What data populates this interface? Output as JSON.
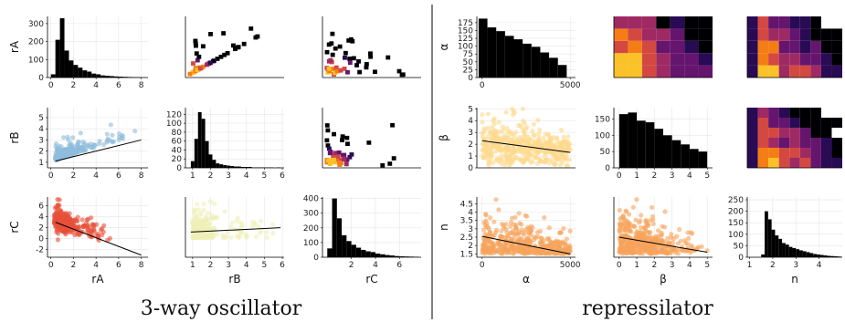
{
  "figure": {
    "left_title": "3-way oscillator",
    "right_title": "repressilator"
  },
  "colors": {
    "hist": "#000000",
    "blue": "#8fbcdc",
    "red": "#e8503a",
    "yellow": "#eef0b8",
    "cream": "#fdd98c",
    "orange": "#f7a35c",
    "fit": "#000000",
    "inferno": [
      "#000004",
      "#280b54",
      "#65156e",
      "#9f2a63",
      "#d44842",
      "#f57d15",
      "#fac228",
      "#fcffa4"
    ]
  },
  "chart_data": [
    {
      "id": "osc-hist-rA",
      "type": "bar",
      "panel": "3-way oscillator row1 col1",
      "ylabel": "rA",
      "xticks": [
        0,
        2,
        4,
        6,
        8
      ],
      "yticks": [
        0,
        100,
        200,
        300
      ],
      "xlim": [
        -0.3,
        8.6
      ],
      "ylim": [
        0,
        340
      ],
      "bins": [
        0,
        0.4,
        0.8,
        1.2,
        1.6,
        2.0,
        2.4,
        2.8,
        3.2,
        3.6,
        4.0,
        4.4,
        4.8,
        5.2,
        5.6,
        6.0,
        6.4,
        6.8,
        7.2,
        7.6,
        8.0,
        8.4
      ],
      "counts": [
        18,
        210,
        330,
        150,
        95,
        70,
        55,
        40,
        33,
        22,
        18,
        12,
        10,
        8,
        6,
        5,
        4,
        3,
        2,
        2,
        1
      ]
    },
    {
      "id": "osc-heat-rB-rA",
      "type": "heatmap",
      "panel": "3-way oscillator row1 col2",
      "x_var": "rB",
      "y_var": "rA"
    },
    {
      "id": "osc-heat-rC-rA",
      "type": "heatmap",
      "panel": "3-way oscillator row1 col3",
      "x_var": "rC",
      "y_var": "rA"
    },
    {
      "id": "osc-scatter-rA-rB",
      "type": "scatter",
      "panel": "3-way oscillator row2 col1",
      "ylabel": "rB",
      "xticks": [
        0,
        2,
        4,
        6,
        8
      ],
      "yticks": [
        1,
        2,
        3,
        4,
        5
      ],
      "xlim": [
        -0.3,
        8.6
      ],
      "ylim": [
        0.5,
        5.9
      ],
      "fit": {
        "x": [
          0.4,
          8
        ],
        "y": [
          1.1,
          3.0
        ]
      }
    },
    {
      "id": "osc-hist-rB",
      "type": "bar",
      "panel": "3-way oscillator row2 col2",
      "xticks": [
        1,
        2,
        3,
        4,
        5,
        6
      ],
      "yticks": [
        0,
        20,
        40,
        60,
        80,
        100,
        120
      ],
      "xlim": [
        0.6,
        6.1
      ],
      "ylim": [
        0,
        135
      ],
      "bins": [
        0.9,
        1.1,
        1.3,
        1.5,
        1.7,
        1.9,
        2.1,
        2.3,
        2.5,
        2.7,
        2.9,
        3.1,
        3.3,
        3.5,
        3.7,
        3.9,
        4.1,
        4.3,
        4.5,
        4.7,
        4.9,
        5.1,
        5.3,
        5.5,
        5.7,
        5.9
      ],
      "counts": [
        15,
        65,
        125,
        110,
        60,
        30,
        18,
        10,
        8,
        6,
        5,
        4,
        3,
        3,
        2,
        2,
        2,
        1,
        1,
        1,
        1,
        1,
        1,
        0,
        1
      ]
    },
    {
      "id": "osc-heat-rC-rB",
      "type": "heatmap",
      "panel": "3-way oscillator row2 col3",
      "x_var": "rC",
      "y_var": "rB"
    },
    {
      "id": "osc-scatter-rA-rC",
      "type": "scatter",
      "panel": "3-way oscillator row3 col1",
      "xlabel": "rA",
      "ylabel": "rC",
      "xticks": [
        0,
        2,
        4,
        6,
        8
      ],
      "yticks": [
        -2,
        0,
        2,
        4,
        6
      ],
      "xlim": [
        -0.3,
        8.6
      ],
      "ylim": [
        -3.4,
        7.6
      ],
      "fit": {
        "x": [
          0.4,
          8
        ],
        "y": [
          3.0,
          -3.0
        ]
      }
    },
    {
      "id": "osc-scatter-rB-rC",
      "type": "scatter",
      "panel": "3-way oscillator row3 col2",
      "xlabel": "rB",
      "xticks": [
        1,
        2,
        3,
        4,
        5,
        6
      ],
      "xlim": [
        0.6,
        6.1
      ],
      "ylim": [
        -3.4,
        7.6
      ],
      "fit": {
        "x": [
          0.9,
          5.9
        ],
        "y": [
          1.2,
          2.0
        ]
      }
    },
    {
      "id": "osc-hist-rC",
      "type": "bar",
      "panel": "3-way oscillator row3 col3",
      "xlabel": "rC",
      "xticks": [
        2,
        4,
        6
      ],
      "yticks": [
        0,
        100,
        200,
        300,
        400
      ],
      "xlim": [
        -0.4,
        7.8
      ],
      "ylim": [
        0,
        410
      ],
      "bins": [
        0,
        0.4,
        0.8,
        1.2,
        1.6,
        2.0,
        2.4,
        2.8,
        3.2,
        3.6,
        4.0,
        4.4,
        4.8,
        5.2,
        5.6,
        6.0,
        6.4,
        6.8,
        7.2,
        7.6
      ],
      "counts": [
        60,
        400,
        265,
        150,
        110,
        85,
        65,
        50,
        40,
        35,
        25,
        20,
        15,
        12,
        8,
        6,
        5,
        4,
        3
      ]
    },
    {
      "id": "rep-hist-alpha",
      "type": "bar",
      "panel": "repressilator row1 col1",
      "ylabel": "α",
      "xticks": [
        0,
        5000
      ],
      "yticks": [
        0,
        25,
        50,
        75,
        100,
        125,
        150,
        175
      ],
      "xlim": [
        -300,
        5300
      ],
      "ylim": [
        0,
        195
      ],
      "bins": [
        -200,
        300,
        800,
        1300,
        1800,
        2300,
        2800,
        3300,
        3800,
        4300,
        4800
      ],
      "counts": [
        188,
        160,
        148,
        133,
        122,
        108,
        98,
        80,
        63,
        40
      ]
    },
    {
      "id": "rep-heat-beta-alpha",
      "type": "heatmap",
      "panel": "repressilator row1 col2",
      "x_var": "β",
      "y_var": "α"
    },
    {
      "id": "rep-heat-n-alpha",
      "type": "heatmap",
      "panel": "repressilator row1 col3",
      "x_var": "n",
      "y_var": "α"
    },
    {
      "id": "rep-scatter-alpha-beta",
      "type": "scatter",
      "panel": "repressilator row2 col1",
      "ylabel": "β",
      "yticks": [
        0,
        1,
        2,
        3,
        4,
        5
      ],
      "xlim": [
        -300,
        5300
      ],
      "ylim": [
        0,
        5.1
      ],
      "fit": {
        "x": [
          0,
          5000
        ],
        "y": [
          2.3,
          1.3
        ]
      }
    },
    {
      "id": "rep-hist-beta",
      "type": "bar",
      "panel": "repressilator row2 col2",
      "xticks": [
        0,
        1,
        2,
        3,
        4,
        5
      ],
      "yticks": [
        0,
        50,
        100,
        150
      ],
      "xlim": [
        -0.3,
        5.3
      ],
      "ylim": [
        0,
        185
      ],
      "bins": [
        0,
        0.5,
        1.0,
        1.5,
        2.0,
        2.5,
        3.0,
        3.5,
        4.0,
        4.5,
        5.0
      ],
      "counts": [
        165,
        170,
        145,
        140,
        120,
        100,
        85,
        72,
        58,
        50
      ]
    },
    {
      "id": "rep-heat-n-beta",
      "type": "heatmap",
      "panel": "repressilator row2 col3",
      "x_var": "n",
      "y_var": "β"
    },
    {
      "id": "rep-scatter-alpha-n",
      "type": "scatter",
      "panel": "repressilator row3 col1",
      "xlabel": "α",
      "ylabel": "n",
      "xticks": [
        0,
        5000
      ],
      "yticks": [
        1.5,
        2.0,
        2.5,
        3.0,
        3.5,
        4.0,
        4.5
      ],
      "xlim": [
        -300,
        5300
      ],
      "ylim": [
        1.3,
        4.9
      ],
      "fit": {
        "x": [
          0,
          5000
        ],
        "y": [
          2.55,
          1.5
        ]
      }
    },
    {
      "id": "rep-scatter-beta-n",
      "type": "scatter",
      "panel": "repressilator row3 col2",
      "xlabel": "β",
      "xticks": [
        0,
        1,
        2,
        3,
        4,
        5
      ],
      "xlim": [
        -0.3,
        5.3
      ],
      "ylim": [
        1.3,
        4.9
      ],
      "fit": {
        "x": [
          0,
          5
        ],
        "y": [
          2.5,
          1.6
        ]
      }
    },
    {
      "id": "rep-hist-n",
      "type": "bar",
      "panel": "repressilator row3 col3",
      "xlabel": "n",
      "xticks": [
        1,
        2,
        3,
        4
      ],
      "yticks": [
        0,
        50,
        100,
        150,
        200,
        250
      ],
      "xlim": [
        0.9,
        5.0
      ],
      "ylim": [
        0,
        262
      ],
      "bins": [
        1.5,
        1.65,
        1.8,
        1.95,
        2.1,
        2.25,
        2.4,
        2.55,
        2.7,
        2.85,
        3.0,
        3.15,
        3.3,
        3.45,
        3.6,
        3.75,
        3.9,
        4.05,
        4.2,
        4.35,
        4.5,
        4.65,
        4.8,
        4.95
      ],
      "counts": [
        12,
        200,
        165,
        120,
        95,
        80,
        62,
        55,
        45,
        40,
        35,
        30,
        26,
        22,
        18,
        14,
        12,
        10,
        8,
        6,
        5,
        4,
        3
      ]
    }
  ]
}
